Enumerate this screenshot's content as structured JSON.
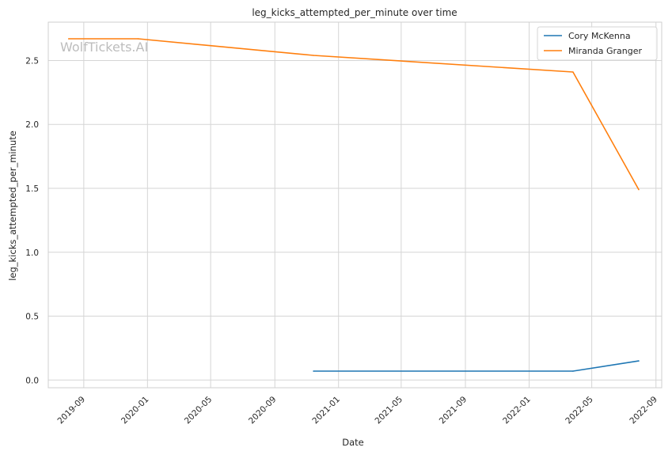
{
  "chart_data": {
    "type": "line",
    "title": "leg_kicks_attempted_per_minute over time",
    "xlabel": "Date",
    "ylabel": "leg_kicks_attempted_per_minute",
    "watermark": "WolfTickets.AI",
    "xlim": [
      "2019-06-25",
      "2022-09-12"
    ],
    "ylim": [
      -0.06,
      2.8
    ],
    "x_ticks": [
      "2019-09",
      "2020-01",
      "2020-05",
      "2020-09",
      "2021-01",
      "2021-05",
      "2021-09",
      "2022-01",
      "2022-05",
      "2022-09"
    ],
    "x_tick_dates": [
      "2019-09-01",
      "2020-01-01",
      "2020-05-01",
      "2020-09-01",
      "2021-01-01",
      "2021-05-01",
      "2021-09-01",
      "2022-01-01",
      "2022-05-01",
      "2022-09-01"
    ],
    "y_ticks": [
      0.0,
      0.5,
      1.0,
      1.5,
      2.0,
      2.5
    ],
    "y_tick_labels": [
      "0.0",
      "0.5",
      "1.0",
      "1.5",
      "2.0",
      "2.5"
    ],
    "grid": true,
    "legend_position": "top-right",
    "series": [
      {
        "name": "Cory McKenna",
        "color": "#1f77b4",
        "x": [
          "2020-11-14",
          "2022-03-26",
          "2022-07-30"
        ],
        "y": [
          0.07,
          0.07,
          0.15
        ]
      },
      {
        "name": "Miranda Granger",
        "color": "#ff7f0e",
        "x": [
          "2019-08-03",
          "2019-12-14",
          "2020-11-14",
          "2022-03-26",
          "2022-07-30"
        ],
        "y": [
          2.67,
          2.67,
          2.54,
          2.41,
          1.49
        ]
      }
    ]
  }
}
